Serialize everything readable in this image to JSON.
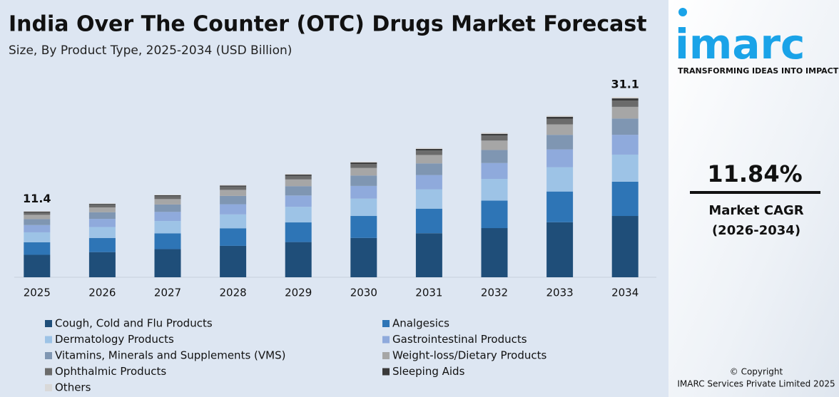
{
  "chart_data": {
    "type": "stacked-bar",
    "title": "India Over The Counter (OTC) Drugs Market Forecast",
    "subtitle": "Size, By Product Type, 2025-2034 (USD Billion)",
    "categories": [
      "2025",
      "2026",
      "2027",
      "2028",
      "2029",
      "2030",
      "2031",
      "2032",
      "2033",
      "2034"
    ],
    "series": [
      {
        "name": "Cough, Cold and Flu Products",
        "color": "#1f4e79",
        "values": [
          3.87,
          4.34,
          4.85,
          5.42,
          6.07,
          6.78,
          7.59,
          8.48,
          9.49,
          10.57
        ]
      },
      {
        "name": "Analgesics",
        "color": "#2e75b6",
        "values": [
          2.17,
          2.42,
          2.71,
          3.03,
          3.39,
          3.79,
          4.24,
          4.74,
          5.3,
          5.91
        ]
      },
      {
        "name": "Dermatology Products",
        "color": "#9dc3e6",
        "values": [
          1.71,
          1.91,
          2.14,
          2.39,
          2.68,
          2.99,
          3.35,
          3.74,
          4.19,
          4.67
        ]
      },
      {
        "name": "Gastrointestinal Products",
        "color": "#8faadc",
        "values": [
          1.25,
          1.4,
          1.57,
          1.75,
          1.96,
          2.19,
          2.45,
          2.74,
          3.07,
          3.42
        ]
      },
      {
        "name": "Vitamins, Minerals and Supplements (VMS)",
        "color": "#7f96b2",
        "values": [
          1.03,
          1.15,
          1.28,
          1.44,
          1.61,
          1.8,
          2.01,
          2.25,
          2.51,
          2.8
        ]
      },
      {
        "name": "Weight-loss/Dietary Products",
        "color": "#a6a6a6",
        "values": [
          0.74,
          0.83,
          0.93,
          1.04,
          1.16,
          1.3,
          1.45,
          1.62,
          1.81,
          2.02
        ]
      },
      {
        "name": "Ophthalmic Products",
        "color": "#6b6b6b",
        "values": [
          0.4,
          0.45,
          0.5,
          0.56,
          0.62,
          0.7,
          0.78,
          0.87,
          0.98,
          1.09
        ]
      },
      {
        "name": "Sleeping Aids",
        "color": "#3a3a3a",
        "values": [
          0.14,
          0.15,
          0.17,
          0.19,
          0.21,
          0.24,
          0.27,
          0.3,
          0.33,
          0.37
        ]
      },
      {
        "name": "Others",
        "color": "#d9d9d9",
        "values": [
          0.09,
          0.1,
          0.11,
          0.13,
          0.14,
          0.16,
          0.18,
          0.2,
          0.22,
          0.25
        ]
      }
    ],
    "totals": [
      11.4,
      null,
      null,
      null,
      null,
      null,
      null,
      null,
      null,
      31.1
    ]
  },
  "brand": {
    "logo": "imarc",
    "tagline": "TRANSFORMING IDEAS INTO IMPACT",
    "cagr": "11.84%",
    "cagr_label": "Market CAGR",
    "cagr_period": "(2026-2034)",
    "copyright": "© Copyright",
    "company": "IMARC Services Private Limited 2025"
  }
}
